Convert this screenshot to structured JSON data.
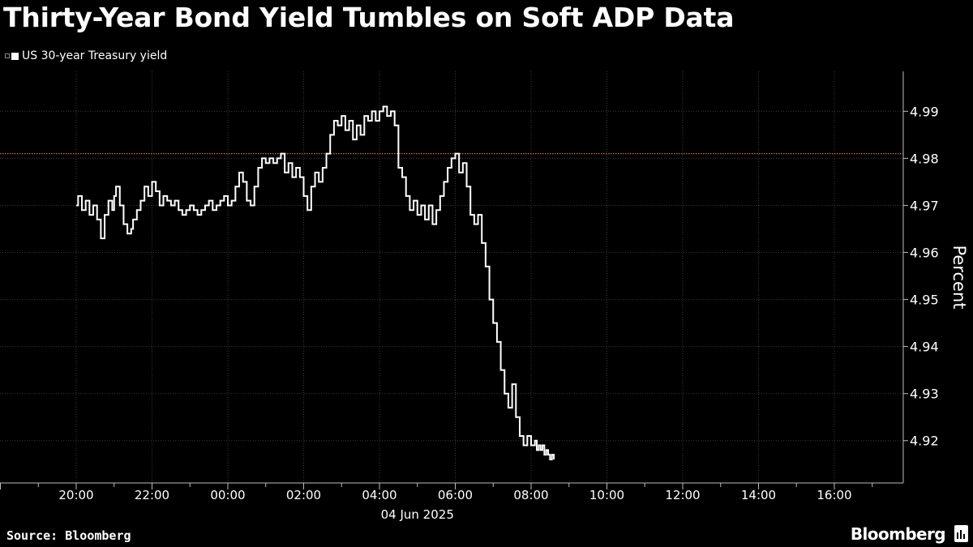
{
  "title": "Thirty-Year Bond Yield Tumbles on Soft ADP Data",
  "legend": {
    "series_name": "US 30-year Treasury yield",
    "color": "#ffffff"
  },
  "footer": {
    "source": "Source: Bloomberg",
    "brand": "Bloomberg"
  },
  "chart_data": {
    "type": "line",
    "title": "Thirty-Year Bond Yield Tumbles on Soft ADP Data",
    "ylabel": "Percent",
    "x_ticks": [
      "20:00",
      "22:00",
      "00:00",
      "02:00",
      "04:00",
      "06:00",
      "08:00",
      "10:00",
      "12:00",
      "14:00",
      "16:00"
    ],
    "x_date_label": "04 Jun 2025",
    "ylim": [
      4.911,
      4.9985
    ],
    "y_ticks": [
      4.99,
      4.98,
      4.97,
      4.96,
      4.95,
      4.94,
      4.93,
      4.92
    ],
    "reference_line": {
      "value": 4.981,
      "color": "#c8703a",
      "style": "dotted"
    },
    "grid": true,
    "grid_style": "dotted",
    "series": [
      {
        "name": "US 30-year Treasury yield",
        "color": "#ffffff",
        "x_hours_since_20": [
          0,
          0.05,
          0.15,
          0.25,
          0.35,
          0.45,
          0.55,
          0.65,
          0.75,
          0.85,
          0.95,
          1.0,
          1.05,
          1.15,
          1.25,
          1.35,
          1.45,
          1.5,
          1.6,
          1.7,
          1.8,
          1.9,
          2.0,
          2.1,
          2.2,
          2.3,
          2.4,
          2.5,
          2.6,
          2.7,
          2.8,
          2.9,
          3.0,
          3.1,
          3.2,
          3.3,
          3.4,
          3.5,
          3.6,
          3.7,
          3.8,
          3.9,
          4.0,
          4.1,
          4.2,
          4.3,
          4.4,
          4.5,
          4.6,
          4.7,
          4.8,
          4.9,
          5.0,
          5.1,
          5.2,
          5.3,
          5.4,
          5.5,
          5.6,
          5.7,
          5.8,
          5.9,
          6.0,
          6.1,
          6.2,
          6.3,
          6.4,
          6.5,
          6.6,
          6.7,
          6.8,
          6.9,
          7.0,
          7.1,
          7.2,
          7.3,
          7.4,
          7.5,
          7.6,
          7.7,
          7.8,
          7.9,
          8.0,
          8.1,
          8.2,
          8.3,
          8.4,
          8.5,
          8.6,
          8.7,
          8.8,
          8.9,
          9.0,
          9.1,
          9.2,
          9.3,
          9.4,
          9.5,
          9.6,
          9.7,
          9.8,
          9.9,
          10.0,
          10.1,
          10.2,
          10.3,
          10.4,
          10.5,
          10.6,
          10.7,
          10.8,
          10.9,
          11.0,
          11.1,
          11.2,
          11.3,
          11.4,
          11.5,
          11.6,
          11.7,
          11.8,
          11.9,
          12.0,
          12.1,
          12.15,
          12.2,
          12.25,
          12.3,
          12.35,
          12.4,
          12.45,
          12.5,
          12.55,
          12.6
        ],
        "y": [
          4.97,
          4.972,
          4.969,
          4.971,
          4.968,
          4.97,
          4.967,
          4.963,
          4.968,
          4.971,
          4.969,
          4.972,
          4.974,
          4.97,
          4.966,
          4.964,
          4.965,
          4.967,
          4.969,
          4.971,
          4.974,
          4.972,
          4.975,
          4.973,
          4.97,
          4.972,
          4.971,
          4.97,
          4.971,
          4.969,
          4.968,
          4.969,
          4.97,
          4.969,
          4.968,
          4.969,
          4.97,
          4.971,
          4.969,
          4.97,
          4.971,
          4.972,
          4.97,
          4.971,
          4.974,
          4.977,
          4.975,
          4.971,
          4.97,
          4.974,
          4.978,
          4.98,
          4.979,
          4.98,
          4.979,
          4.98,
          4.981,
          4.977,
          4.979,
          4.976,
          4.978,
          4.976,
          4.972,
          4.969,
          4.974,
          4.977,
          4.975,
          4.978,
          4.981,
          4.985,
          4.988,
          4.987,
          4.989,
          4.986,
          4.988,
          4.984,
          4.987,
          4.985,
          4.989,
          4.988,
          4.99,
          4.988,
          4.99,
          4.991,
          4.989,
          4.99,
          4.987,
          4.978,
          4.976,
          4.972,
          4.969,
          4.971,
          4.968,
          4.97,
          4.967,
          4.97,
          4.966,
          4.969,
          4.972,
          4.975,
          4.978,
          4.98,
          4.981,
          4.977,
          4.979,
          4.974,
          4.968,
          4.966,
          4.968,
          4.962,
          4.957,
          4.95,
          4.945,
          4.941,
          4.935,
          4.93,
          4.927,
          4.932,
          4.925,
          4.921,
          4.919,
          4.921,
          4.919,
          4.92,
          4.918,
          4.919,
          4.918,
          4.919,
          4.917,
          4.918,
          4.917,
          4.916,
          4.917,
          4.916,
          4.915
        ]
      }
    ]
  }
}
